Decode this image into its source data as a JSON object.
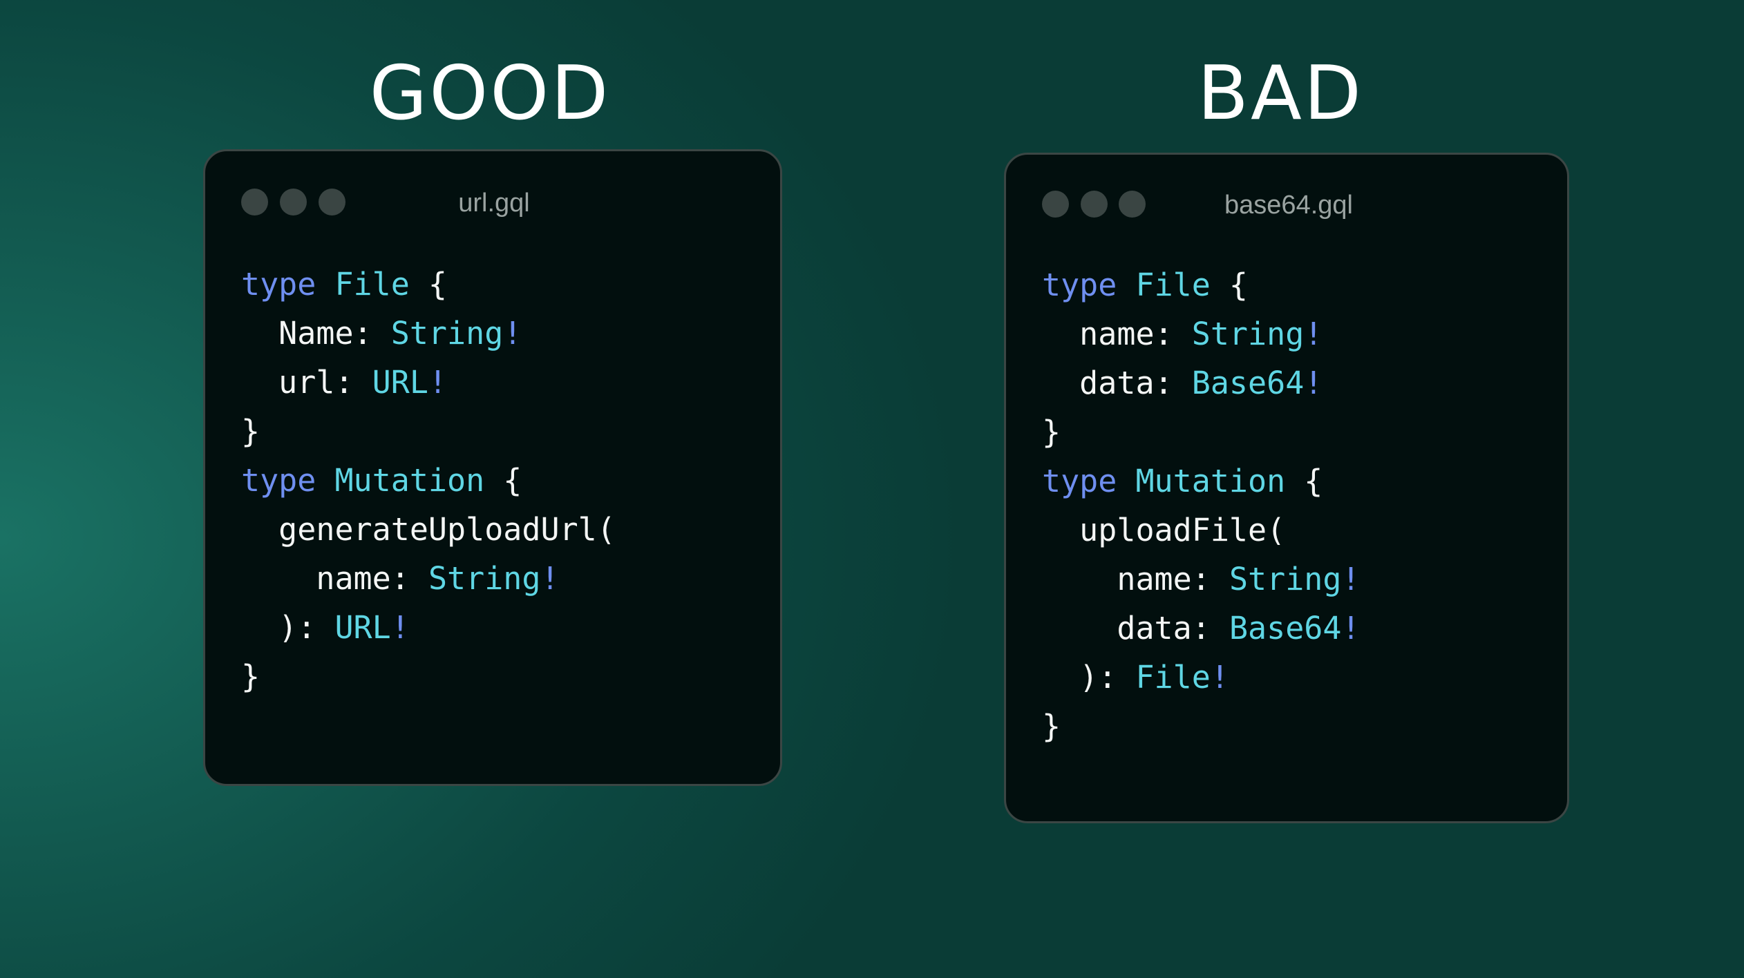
{
  "panels": [
    {
      "heading": "GOOD",
      "filename": "url.gql",
      "lines": [
        [
          {
            "t": "type ",
            "c": "kw"
          },
          {
            "t": "File",
            "c": "ty"
          },
          {
            "t": " {",
            "c": "pl"
          }
        ],
        [
          {
            "t": "  Name: ",
            "c": "pl"
          },
          {
            "t": "String",
            "c": "ty"
          },
          {
            "t": "!",
            "c": "kw"
          }
        ],
        [
          {
            "t": "  url: ",
            "c": "pl"
          },
          {
            "t": "URL",
            "c": "ty"
          },
          {
            "t": "!",
            "c": "kw"
          }
        ],
        [
          {
            "t": "}",
            "c": "pl"
          }
        ],
        [
          {
            "t": "type ",
            "c": "kw"
          },
          {
            "t": "Mutation",
            "c": "ty"
          },
          {
            "t": " {",
            "c": "pl"
          }
        ],
        [
          {
            "t": "  generateUploadUrl(",
            "c": "pl"
          }
        ],
        [
          {
            "t": "    name: ",
            "c": "pl"
          },
          {
            "t": "String",
            "c": "ty"
          },
          {
            "t": "!",
            "c": "kw"
          }
        ],
        [
          {
            "t": "  ): ",
            "c": "pl"
          },
          {
            "t": "URL",
            "c": "ty"
          },
          {
            "t": "!",
            "c": "kw"
          }
        ],
        [
          {
            "t": "}",
            "c": "pl"
          }
        ]
      ]
    },
    {
      "heading": "BAD",
      "filename": "base64.gql",
      "lines": [
        [
          {
            "t": "type ",
            "c": "kw"
          },
          {
            "t": "File",
            "c": "ty"
          },
          {
            "t": " {",
            "c": "pl"
          }
        ],
        [
          {
            "t": "  name: ",
            "c": "pl"
          },
          {
            "t": "String",
            "c": "ty"
          },
          {
            "t": "!",
            "c": "kw"
          }
        ],
        [
          {
            "t": "  data: ",
            "c": "pl"
          },
          {
            "t": "Base64",
            "c": "ty"
          },
          {
            "t": "!",
            "c": "kw"
          }
        ],
        [
          {
            "t": "}",
            "c": "pl"
          }
        ],
        [
          {
            "t": "type ",
            "c": "kw"
          },
          {
            "t": "Mutation",
            "c": "ty"
          },
          {
            "t": " {",
            "c": "pl"
          }
        ],
        [
          {
            "t": "  uploadFile(",
            "c": "pl"
          }
        ],
        [
          {
            "t": "    name: ",
            "c": "pl"
          },
          {
            "t": "String",
            "c": "ty"
          },
          {
            "t": "!",
            "c": "kw"
          }
        ],
        [
          {
            "t": "    data: ",
            "c": "pl"
          },
          {
            "t": "Base64",
            "c": "ty"
          },
          {
            "t": "!",
            "c": "kw"
          }
        ],
        [
          {
            "t": "  ): ",
            "c": "pl"
          },
          {
            "t": "File",
            "c": "ty"
          },
          {
            "t": "!",
            "c": "kw"
          }
        ],
        [
          {
            "t": "}",
            "c": "pl"
          }
        ]
      ]
    }
  ],
  "colors": {
    "keyword": "#6f8ff0",
    "type": "#5fd6e4",
    "text": "#f4f6f5",
    "card": "#020f0e"
  },
  "icons": {
    "window_dots": "traffic-light-dots"
  }
}
